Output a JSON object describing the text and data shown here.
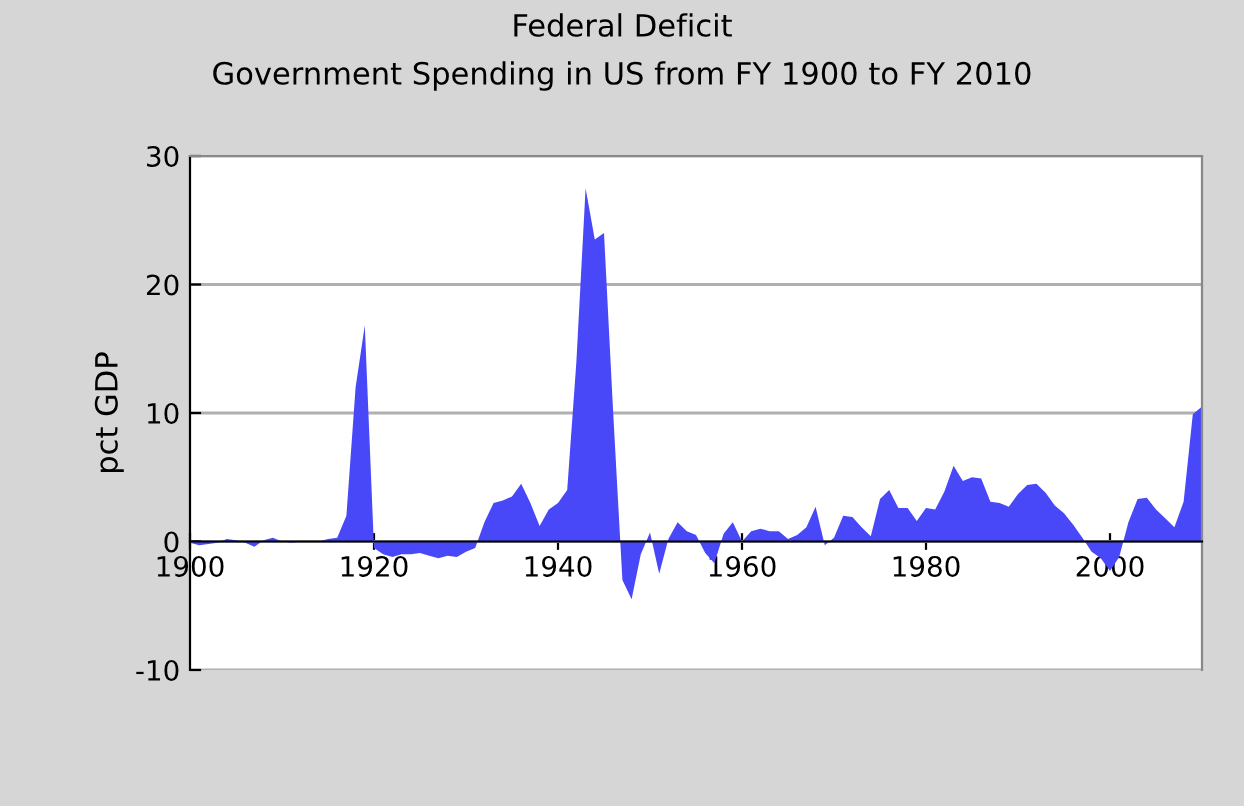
{
  "chart_data": {
    "type": "area",
    "title": "Federal Deficit",
    "subtitle": "Government Spending in US from FY 1900 to FY 2010",
    "ylabel": "pct GDP",
    "x": [
      1900,
      1901,
      1902,
      1903,
      1904,
      1905,
      1906,
      1907,
      1908,
      1909,
      1910,
      1911,
      1912,
      1913,
      1914,
      1915,
      1916,
      1917,
      1918,
      1919,
      1920,
      1921,
      1922,
      1923,
      1924,
      1925,
      1926,
      1927,
      1928,
      1929,
      1930,
      1931,
      1932,
      1933,
      1934,
      1935,
      1936,
      1937,
      1938,
      1939,
      1940,
      1941,
      1942,
      1943,
      1944,
      1945,
      1946,
      1947,
      1948,
      1949,
      1950,
      1951,
      1952,
      1953,
      1954,
      1955,
      1956,
      1957,
      1958,
      1959,
      1960,
      1961,
      1962,
      1963,
      1964,
      1965,
      1966,
      1967,
      1968,
      1969,
      1970,
      1971,
      1972,
      1973,
      1974,
      1975,
      1976,
      1977,
      1978,
      1979,
      1980,
      1981,
      1982,
      1983,
      1984,
      1985,
      1986,
      1987,
      1988,
      1989,
      1990,
      1991,
      1992,
      1993,
      1994,
      1995,
      1996,
      1997,
      1998,
      1999,
      2000,
      2001,
      2002,
      2003,
      2004,
      2005,
      2006,
      2007,
      2008,
      2009,
      2010
    ],
    "series": [
      {
        "color": "#4848f8",
        "values": [
          -0.1,
          -0.3,
          -0.2,
          -0.1,
          0.2,
          0.1,
          -0.1,
          -0.4,
          0.1,
          0.3,
          0,
          -0.1,
          0,
          0,
          0,
          0.2,
          0.3,
          2,
          12,
          16.8,
          -0.5,
          -1,
          -1.2,
          -1,
          -1,
          -0.9,
          -1.1,
          -1.3,
          -1.1,
          -1.2,
          -0.8,
          -0.5,
          1.5,
          3,
          3.2,
          3.5,
          4.5,
          3,
          1.2,
          2.5,
          3,
          4,
          14,
          27.5,
          23.5,
          24,
          10,
          -3,
          -4.5,
          -1,
          0.7,
          -2.5,
          0.2,
          1.5,
          0.8,
          0.5,
          -0.9,
          -1.7,
          0.6,
          1.5,
          0,
          0.8,
          1,
          0.8,
          0.8,
          0.2,
          0.5,
          1.1,
          2.7,
          -0.3,
          0.3,
          2,
          1.9,
          1.1,
          0.4,
          3.3,
          4,
          2.6,
          2.6,
          1.6,
          2.6,
          2.5,
          3.9,
          5.9,
          4.7,
          5,
          4.9,
          3.1,
          3,
          2.7,
          3.7,
          4.4,
          4.5,
          3.8,
          2.8,
          2.2,
          1.3,
          0.3,
          -0.8,
          -1.3,
          -2.3,
          -1.2,
          1.5,
          3.3,
          3.4,
          2.5,
          1.8,
          1.1,
          3.1,
          9.9,
          10.5
        ]
      }
    ],
    "xlim": [
      1900,
      2010
    ],
    "xticks": [
      1900,
      1920,
      1940,
      1960,
      1980,
      2000
    ],
    "ylim": [
      -10,
      30
    ],
    "yticks": [
      -10,
      0,
      10,
      20,
      30
    ],
    "grid": "y"
  }
}
